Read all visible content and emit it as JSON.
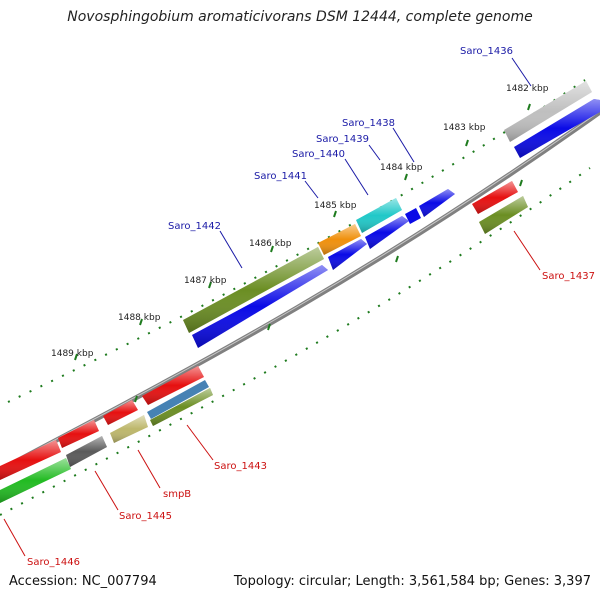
{
  "title": "Novosphingobium aromaticivorans DSM 12444, complete genome",
  "footer": {
    "accession": "Accession: NC_007794",
    "summary": "Topology: circular; Length: 3,561,584 bp; Genes: 3,397"
  },
  "ticks": [
    "1482 kbp",
    "1483 kbp",
    "1484 kbp",
    "1485 kbp",
    "1486 kbp",
    "1487 kbp",
    "1488 kbp",
    "1489 kbp"
  ],
  "forward_labels": [
    "Saro_1436",
    "Saro_1438",
    "Saro_1439",
    "Saro_1440",
    "Saro_1441",
    "Saro_1442"
  ],
  "reverse_labels": [
    "Saro_1437",
    "Saro_1443",
    "smpB",
    "Saro_1445",
    "Saro_1446"
  ],
  "colors": {
    "forward_label": "#1a1aa6",
    "reverse_label": "#cc1111",
    "tick": "#1e7b1e",
    "backbone": "#808080",
    "cds_forward": "#0a0ae6",
    "cds_reverse": "#e61010",
    "olive": "#6b8e23",
    "orange": "#f0900c",
    "cyan": "#20c8c8",
    "silver": "#bfbfbf",
    "khaki": "#bdb76b",
    "steelblue": "#4682b4",
    "darkgray": "#5a5a5a",
    "green": "#22bb22"
  }
}
